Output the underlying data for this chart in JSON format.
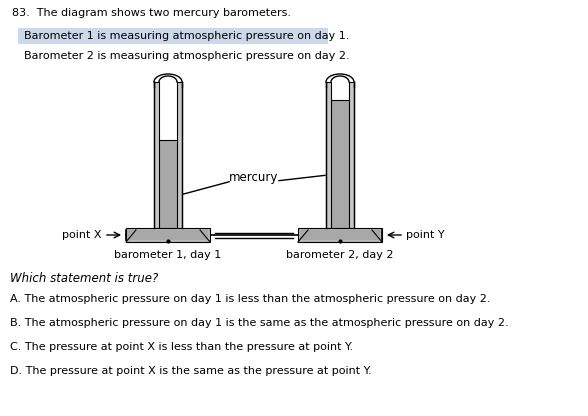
{
  "title": "83.  The diagram shows two mercury barometers.",
  "line1": "Barometer 1 is measuring atmospheric pressure on day 1.",
  "line2": "Barometer 2 is measuring atmospheric pressure on day 2.",
  "label_mercury": "mercury",
  "label_point_x": "point X",
  "label_point_y": "point Y",
  "label_baro1": "barometer 1, day 1",
  "label_baro2": "barometer 2, day 2",
  "question": "Which statement is true?",
  "optionA": "A. The atmospheric pressure on day 1 is less than the atmospheric pressure on day 2.",
  "optionB": "B. The atmospheric pressure on day 1 is the same as the atmospheric pressure on day 2.",
  "optionC": "C. The pressure at point X is less than the pressure at point Y.",
  "optionD": "D. The pressure at point X is the same as the pressure at point Y.",
  "bg_color": "#ffffff",
  "highlight_color": "#ccd9ea",
  "tube_fill": "#c8c8c8",
  "mercury_fill": "#a8a8a8",
  "trough_fill": "#b8b8b8",
  "white": "#ffffff",
  "black": "#000000"
}
